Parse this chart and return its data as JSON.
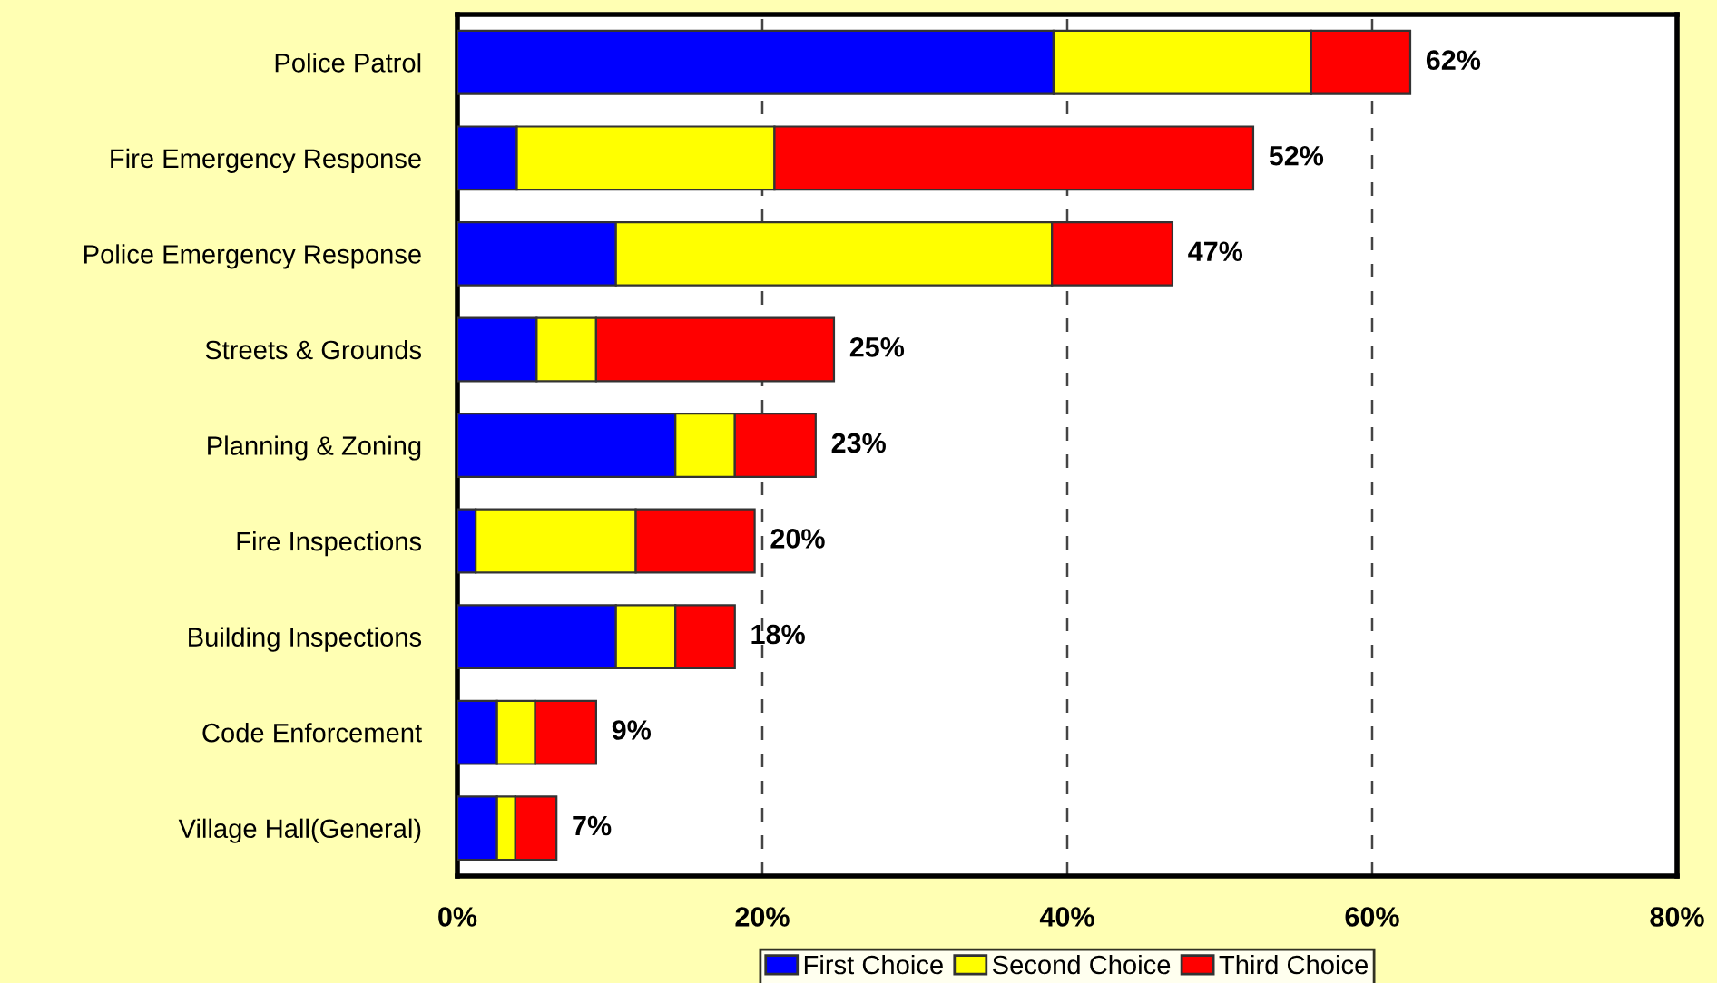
{
  "chart_data": {
    "type": "bar",
    "orientation": "horizontal",
    "stacked": true,
    "categories": [
      "Police Patrol",
      "Fire Emergency Response",
      "Police Emergency Response",
      "Streets & Grounds",
      "Planning & Zoning",
      "Fire Inspections",
      "Building Inspections",
      "Code Enforcement",
      "Village Hall(General)"
    ],
    "series": [
      {
        "name": "First Choice",
        "color": "#0000ff",
        "values": [
          39.1,
          3.9,
          10.4,
          5.2,
          14.3,
          1.2,
          10.4,
          2.6,
          2.6
        ]
      },
      {
        "name": "Second Choice",
        "color": "#ffff00",
        "values": [
          16.9,
          16.9,
          28.6,
          3.9,
          3.9,
          10.5,
          3.9,
          2.5,
          1.2
        ]
      },
      {
        "name": "Third Choice",
        "color": "#ff0000",
        "values": [
          6.5,
          31.4,
          7.9,
          15.6,
          5.3,
          7.8,
          3.9,
          4.0,
          2.7
        ]
      }
    ],
    "totals": [
      "62%",
      "52%",
      "47%",
      "25%",
      "23%",
      "20%",
      "18%",
      "9%",
      "7%"
    ],
    "xlim": [
      0,
      80
    ],
    "xticks": [
      {
        "value": 0,
        "label": "0%"
      },
      {
        "value": 20,
        "label": "20%"
      },
      {
        "value": 40,
        "label": "40%"
      },
      {
        "value": 60,
        "label": "60%"
      },
      {
        "value": 80,
        "label": "80%"
      }
    ],
    "grid": "x",
    "legend": "bottom"
  }
}
